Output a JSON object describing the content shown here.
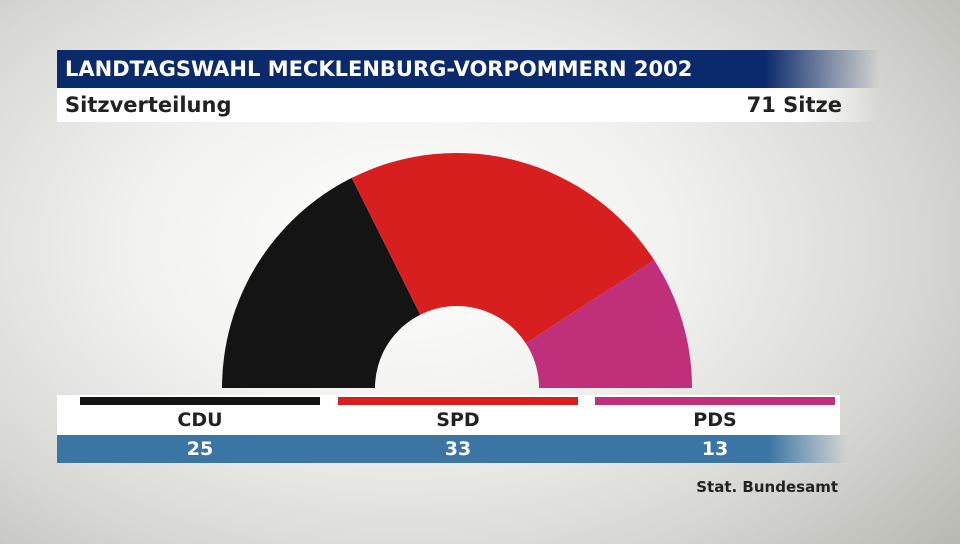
{
  "header": {
    "title": "LANDTAGSWAHL MECKLENBURG-VORPOMMERN 2002",
    "subtitle": "Sitzverteilung",
    "total_label": "71 Sitze"
  },
  "chart_data": {
    "type": "pie",
    "variant": "semicircle",
    "total": 71,
    "categories": [
      "CDU",
      "SPD",
      "PDS"
    ],
    "values": [
      25,
      33,
      13
    ],
    "colors": [
      "#141414",
      "#d81f1f",
      "#c0307a"
    ]
  },
  "footer": {
    "source": "Stat. Bundesamt"
  }
}
